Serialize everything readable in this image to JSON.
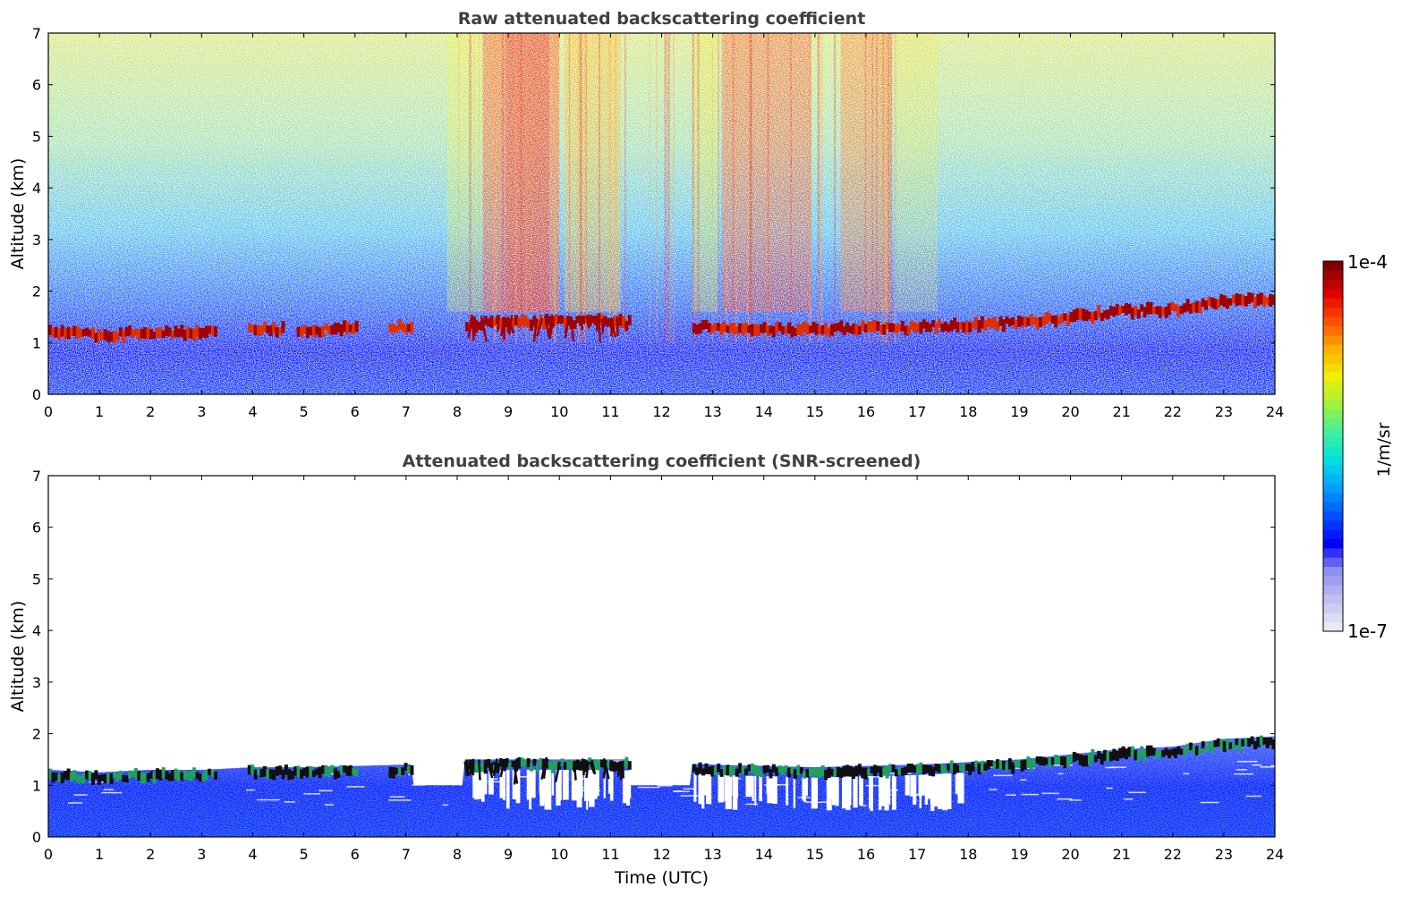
{
  "chart_data": [
    {
      "type": "heatmap",
      "title": "Raw attenuated backscattering coefficient",
      "xlabel": "",
      "ylabel": "Altitude (km)",
      "xlim": [
        0,
        24
      ],
      "ylim": [
        0,
        7
      ],
      "xticks": [
        "0",
        "1",
        "2",
        "3",
        "4",
        "5",
        "6",
        "7",
        "8",
        "9",
        "10",
        "11",
        "12",
        "13",
        "14",
        "15",
        "16",
        "17",
        "18",
        "19",
        "20",
        "21",
        "22",
        "23",
        "24"
      ],
      "yticks": [
        "0",
        "1",
        "2",
        "3",
        "4",
        "5",
        "6",
        "7"
      ],
      "cloud_layer_km": [
        {
          "t": 0,
          "alt": 1.2
        },
        {
          "t": 1,
          "alt": 1.15
        },
        {
          "t": 2,
          "alt": 1.2
        },
        {
          "t": 3,
          "alt": 1.2
        },
        {
          "t": 4,
          "alt": 1.25
        },
        {
          "t": 5,
          "alt": 1.25
        },
        {
          "t": 7,
          "alt": 1.3
        },
        {
          "t": 9,
          "alt": 1.4
        },
        {
          "t": 11,
          "alt": 1.4
        },
        {
          "t": 13,
          "alt": 1.3
        },
        {
          "t": 15,
          "alt": 1.25
        },
        {
          "t": 17,
          "alt": 1.3
        },
        {
          "t": 19,
          "alt": 1.4
        },
        {
          "t": 21,
          "alt": 1.6
        },
        {
          "t": 22,
          "alt": 1.65
        },
        {
          "t": 23,
          "alt": 1.8
        },
        {
          "t": 24,
          "alt": 1.85
        }
      ]
    },
    {
      "type": "heatmap",
      "title": "Attenuated backscattering coefficient (SNR-screened)",
      "xlabel": "Time (UTC)",
      "ylabel": "Altitude (km)",
      "xlim": [
        0,
        24
      ],
      "ylim": [
        0,
        7
      ],
      "xticks": [
        "0",
        "1",
        "2",
        "3",
        "4",
        "5",
        "6",
        "7",
        "8",
        "9",
        "10",
        "11",
        "12",
        "13",
        "14",
        "15",
        "16",
        "17",
        "18",
        "19",
        "20",
        "21",
        "22",
        "23",
        "24"
      ],
      "yticks": [
        "0",
        "1",
        "2",
        "3",
        "4",
        "5",
        "6",
        "7"
      ],
      "cloud_layer_km": [
        {
          "t": 0,
          "alt": 1.2
        },
        {
          "t": 1,
          "alt": 1.15
        },
        {
          "t": 2,
          "alt": 1.2
        },
        {
          "t": 3,
          "alt": 1.2
        },
        {
          "t": 4,
          "alt": 1.25
        },
        {
          "t": 5,
          "alt": 1.25
        },
        {
          "t": 7,
          "alt": 1.3
        },
        {
          "t": 9,
          "alt": 1.4
        },
        {
          "t": 11,
          "alt": 1.4
        },
        {
          "t": 13,
          "alt": 1.3
        },
        {
          "t": 15,
          "alt": 1.25
        },
        {
          "t": 17,
          "alt": 1.3
        },
        {
          "t": 19,
          "alt": 1.4
        },
        {
          "t": 21,
          "alt": 1.6
        },
        {
          "t": 22,
          "alt": 1.65
        },
        {
          "t": 23,
          "alt": 1.8
        },
        {
          "t": 24,
          "alt": 1.85
        }
      ]
    }
  ],
  "colorbar": {
    "label": "1/m/sr",
    "max_label": "1e-4",
    "min_label": "1e-7",
    "colors": [
      "#e8e8f8",
      "#c0c0f0",
      "#9090f0",
      "#0000ff",
      "#0050ff",
      "#00a0ff",
      "#00e0e0",
      "#40f0a0",
      "#a0f040",
      "#f0f000",
      "#ffb000",
      "#ff5000",
      "#e00000",
      "#800000"
    ]
  }
}
